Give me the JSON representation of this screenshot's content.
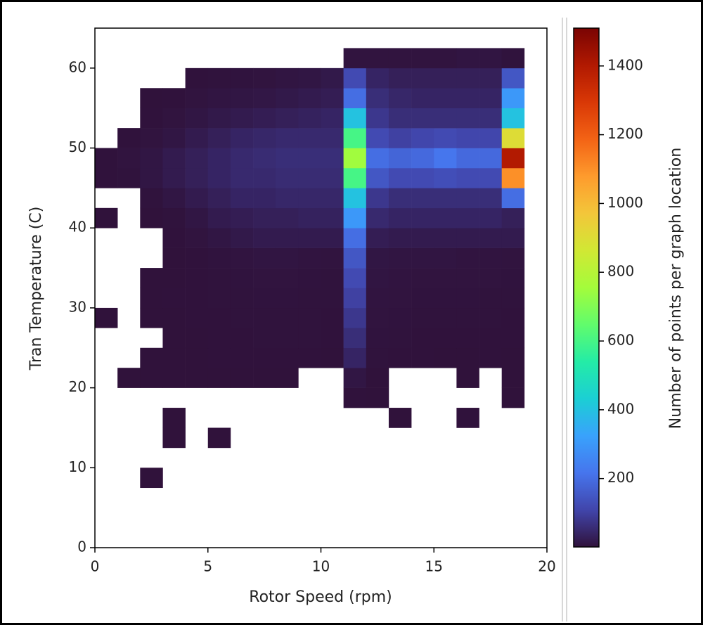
{
  "chart_data": {
    "type": "heatmap",
    "xlabel": "Rotor Speed (rpm)",
    "ylabel": "Tran Temperature (C)",
    "colorbar_label": "Number of points per graph location",
    "xlim": [
      0,
      20
    ],
    "xticks": [
      0,
      5,
      10,
      15,
      20
    ],
    "ylim": [
      0,
      65
    ],
    "yticks": [
      0,
      10,
      20,
      30,
      40,
      50,
      60
    ],
    "zlim": [
      1,
      1510
    ],
    "zticks": [
      200,
      400,
      600,
      800,
      1000,
      1200,
      1400
    ],
    "colormap": [
      "#30123b",
      "#4145ab",
      "#4675ed",
      "#39a2fc",
      "#1bcfd4",
      "#24eca6",
      "#61fc6c",
      "#a4fc3b",
      "#d1e834",
      "#f3c63a",
      "#fe9b2d",
      "#f36315",
      "#d93806",
      "#b11901",
      "#7a0403"
    ],
    "xbins": [
      0,
      1,
      2,
      3,
      4,
      5,
      6,
      7,
      8,
      9,
      10,
      11,
      12,
      13,
      14,
      15,
      16,
      17,
      18,
      19
    ],
    "ybins": [
      7.5,
      10,
      12.5,
      15,
      17.5,
      20,
      22.5,
      25,
      27.5,
      30,
      32.5,
      35,
      37.5,
      40,
      42.5,
      45,
      47.5,
      50,
      52.5,
      55,
      57.5,
      60,
      62.5
    ],
    "z": [
      [
        null,
        null,
        1,
        null,
        null,
        null,
        null,
        null,
        null,
        null,
        null,
        null,
        null,
        null,
        null,
        null,
        null,
        null,
        null
      ],
      [
        null,
        null,
        null,
        null,
        null,
        null,
        null,
        null,
        null,
        null,
        null,
        null,
        null,
        null,
        null,
        null,
        null,
        null,
        null
      ],
      [
        null,
        null,
        null,
        1,
        null,
        1,
        null,
        null,
        null,
        null,
        null,
        null,
        null,
        null,
        null,
        null,
        null,
        null,
        null
      ],
      [
        null,
        null,
        null,
        1,
        null,
        null,
        null,
        null,
        null,
        null,
        null,
        null,
        null,
        1,
        null,
        null,
        2,
        null,
        null
      ],
      [
        null,
        null,
        null,
        null,
        null,
        null,
        null,
        null,
        null,
        null,
        null,
        2,
        1,
        null,
        null,
        null,
        null,
        null,
        1
      ],
      [
        null,
        1,
        1,
        1,
        1,
        1,
        1,
        1,
        1,
        null,
        null,
        10,
        1,
        null,
        null,
        null,
        1,
        null,
        1
      ],
      [
        null,
        null,
        1,
        1,
        1,
        2,
        2,
        2,
        2,
        2,
        1,
        40,
        3,
        2,
        2,
        1,
        1,
        2,
        1
      ],
      [
        null,
        null,
        null,
        1,
        1,
        2,
        2,
        3,
        3,
        3,
        2,
        60,
        4,
        3,
        2,
        2,
        2,
        2,
        2
      ],
      [
        1,
        null,
        1,
        1,
        2,
        2,
        3,
        3,
        3,
        3,
        2,
        80,
        5,
        4,
        3,
        3,
        3,
        3,
        2
      ],
      [
        null,
        null,
        1,
        2,
        2,
        3,
        3,
        4,
        4,
        3,
        3,
        100,
        6,
        5,
        4,
        4,
        4,
        3,
        3
      ],
      [
        null,
        null,
        1,
        1,
        2,
        3,
        4,
        5,
        5,
        4,
        3,
        120,
        8,
        6,
        5,
        5,
        5,
        5,
        4
      ],
      [
        null,
        null,
        null,
        1,
        2,
        4,
        6,
        8,
        8,
        6,
        5,
        150,
        10,
        8,
        8,
        8,
        6,
        6,
        5
      ],
      [
        null,
        null,
        null,
        2,
        5,
        10,
        15,
        20,
        20,
        20,
        20,
        200,
        25,
        20,
        20,
        20,
        20,
        20,
        20
      ],
      [
        1,
        null,
        1,
        3,
        10,
        20,
        25,
        30,
        30,
        35,
        35,
        300,
        50,
        40,
        40,
        40,
        40,
        40,
        30
      ],
      [
        null,
        null,
        3,
        10,
        20,
        30,
        40,
        40,
        45,
        45,
        45,
        400,
        80,
        60,
        60,
        60,
        60,
        60,
        200
      ],
      [
        2,
        3,
        10,
        20,
        30,
        40,
        50,
        50,
        55,
        55,
        55,
        600,
        150,
        120,
        120,
        130,
        120,
        120,
        1100
      ],
      [
        2,
        5,
        10,
        20,
        30,
        40,
        50,
        55,
        60,
        60,
        60,
        750,
        200,
        180,
        190,
        220,
        190,
        190,
        1400
      ],
      [
        null,
        2,
        5,
        10,
        20,
        30,
        40,
        45,
        50,
        50,
        50,
        600,
        120,
        100,
        110,
        120,
        110,
        110,
        900
      ],
      [
        null,
        null,
        2,
        5,
        10,
        15,
        20,
        25,
        30,
        35,
        40,
        400,
        80,
        60,
        60,
        60,
        60,
        60,
        400
      ],
      [
        null,
        null,
        1,
        2,
        5,
        8,
        10,
        12,
        15,
        20,
        25,
        200,
        60,
        45,
        40,
        40,
        40,
        40,
        300
      ],
      [
        null,
        null,
        null,
        null,
        2,
        3,
        4,
        5,
        8,
        10,
        15,
        120,
        40,
        30,
        30,
        30,
        30,
        30,
        150
      ],
      [
        null,
        null,
        null,
        null,
        null,
        null,
        null,
        null,
        null,
        null,
        null,
        5,
        5,
        5,
        5,
        5,
        8,
        8,
        3
      ]
    ]
  }
}
